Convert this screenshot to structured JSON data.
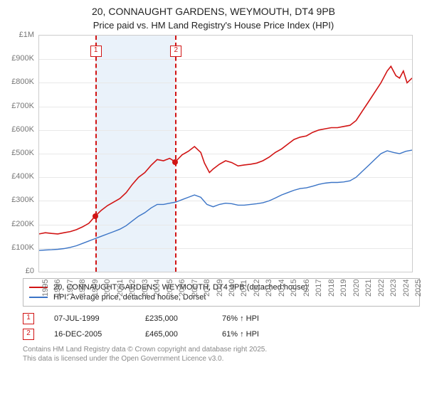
{
  "title1": "20, CONNAUGHT GARDENS, WEYMOUTH, DT4 9PB",
  "title2": "Price paid vs. HM Land Registry's House Price Index (HPI)",
  "chart": {
    "type": "line",
    "background_color": "#ffffff",
    "border_color": "#cccccc",
    "grid_color": "#e8e8e8",
    "y_axis": {
      "min": 0,
      "max": 1000000,
      "ticks": [
        0,
        100000,
        200000,
        300000,
        400000,
        500000,
        600000,
        700000,
        800000,
        900000,
        1000000
      ],
      "labels": [
        "£0",
        "£100K",
        "£200K",
        "£300K",
        "£400K",
        "£500K",
        "£600K",
        "£700K",
        "£800K",
        "£900K",
        "£1M"
      ],
      "label_fontsize": 11,
      "label_color": "#777777"
    },
    "x_axis": {
      "min_year": 1995,
      "max_year": 2025,
      "ticks": [
        1995,
        1996,
        1997,
        1998,
        1999,
        2000,
        2001,
        2002,
        2003,
        2004,
        2005,
        2006,
        2007,
        2008,
        2009,
        2010,
        2011,
        2012,
        2013,
        2014,
        2015,
        2016,
        2017,
        2018,
        2019,
        2020,
        2021,
        2022,
        2023,
        2024,
        2025
      ],
      "label_fontsize": 11,
      "label_color": "#777777",
      "rotation": -90
    },
    "highlight_band": {
      "from_year": 1999.5,
      "to_year": 2005.95,
      "color": "#d9e7f5"
    },
    "series": [
      {
        "id": "property",
        "label": "20, CONNAUGHT GARDENS, WEYMOUTH, DT4 9PB (detached house)",
        "color": "#d11414",
        "line_width": 1.6,
        "points": [
          [
            1995.0,
            160000
          ],
          [
            1995.5,
            165000
          ],
          [
            1996.0,
            162000
          ],
          [
            1996.5,
            160000
          ],
          [
            1997.0,
            165000
          ],
          [
            1997.5,
            170000
          ],
          [
            1998.0,
            178000
          ],
          [
            1998.5,
            190000
          ],
          [
            1999.0,
            205000
          ],
          [
            1999.5,
            235000
          ],
          [
            2000.0,
            260000
          ],
          [
            2000.5,
            280000
          ],
          [
            2001.0,
            295000
          ],
          [
            2001.5,
            310000
          ],
          [
            2002.0,
            335000
          ],
          [
            2002.5,
            370000
          ],
          [
            2003.0,
            400000
          ],
          [
            2003.5,
            420000
          ],
          [
            2004.0,
            450000
          ],
          [
            2004.5,
            475000
          ],
          [
            2005.0,
            470000
          ],
          [
            2005.5,
            480000
          ],
          [
            2005.95,
            465000
          ],
          [
            2006.5,
            495000
          ],
          [
            2007.0,
            510000
          ],
          [
            2007.5,
            530000
          ],
          [
            2008.0,
            505000
          ],
          [
            2008.3,
            460000
          ],
          [
            2008.7,
            420000
          ],
          [
            2009.0,
            435000
          ],
          [
            2009.5,
            455000
          ],
          [
            2010.0,
            470000
          ],
          [
            2010.5,
            462000
          ],
          [
            2011.0,
            448000
          ],
          [
            2011.5,
            452000
          ],
          [
            2012.0,
            455000
          ],
          [
            2012.5,
            460000
          ],
          [
            2013.0,
            470000
          ],
          [
            2013.5,
            485000
          ],
          [
            2014.0,
            505000
          ],
          [
            2014.5,
            520000
          ],
          [
            2015.0,
            540000
          ],
          [
            2015.5,
            560000
          ],
          [
            2016.0,
            570000
          ],
          [
            2016.5,
            575000
          ],
          [
            2017.0,
            590000
          ],
          [
            2017.5,
            600000
          ],
          [
            2018.0,
            605000
          ],
          [
            2018.5,
            610000
          ],
          [
            2019.0,
            610000
          ],
          [
            2019.5,
            615000
          ],
          [
            2020.0,
            620000
          ],
          [
            2020.5,
            640000
          ],
          [
            2021.0,
            680000
          ],
          [
            2021.5,
            720000
          ],
          [
            2022.0,
            760000
          ],
          [
            2022.5,
            800000
          ],
          [
            2023.0,
            850000
          ],
          [
            2023.3,
            870000
          ],
          [
            2023.7,
            830000
          ],
          [
            2024.0,
            820000
          ],
          [
            2024.3,
            850000
          ],
          [
            2024.6,
            800000
          ],
          [
            2025.0,
            820000
          ]
        ]
      },
      {
        "id": "hpi",
        "label": "HPI: Average price, detached house, Dorset",
        "color": "#3b74c6",
        "line_width": 1.4,
        "points": [
          [
            1995.0,
            90000
          ],
          [
            1995.5,
            92000
          ],
          [
            1996.0,
            93000
          ],
          [
            1996.5,
            95000
          ],
          [
            1997.0,
            98000
          ],
          [
            1997.5,
            103000
          ],
          [
            1998.0,
            110000
          ],
          [
            1998.5,
            120000
          ],
          [
            1999.0,
            130000
          ],
          [
            1999.5,
            140000
          ],
          [
            2000.0,
            150000
          ],
          [
            2000.5,
            160000
          ],
          [
            2001.0,
            170000
          ],
          [
            2001.5,
            180000
          ],
          [
            2002.0,
            195000
          ],
          [
            2002.5,
            215000
          ],
          [
            2003.0,
            235000
          ],
          [
            2003.5,
            250000
          ],
          [
            2004.0,
            270000
          ],
          [
            2004.5,
            285000
          ],
          [
            2005.0,
            285000
          ],
          [
            2005.5,
            290000
          ],
          [
            2006.0,
            295000
          ],
          [
            2006.5,
            305000
          ],
          [
            2007.0,
            315000
          ],
          [
            2007.5,
            325000
          ],
          [
            2008.0,
            315000
          ],
          [
            2008.5,
            285000
          ],
          [
            2009.0,
            275000
          ],
          [
            2009.5,
            285000
          ],
          [
            2010.0,
            290000
          ],
          [
            2010.5,
            288000
          ],
          [
            2011.0,
            282000
          ],
          [
            2011.5,
            282000
          ],
          [
            2012.0,
            285000
          ],
          [
            2012.5,
            288000
          ],
          [
            2013.0,
            292000
          ],
          [
            2013.5,
            300000
          ],
          [
            2014.0,
            312000
          ],
          [
            2014.5,
            325000
          ],
          [
            2015.0,
            335000
          ],
          [
            2015.5,
            345000
          ],
          [
            2016.0,
            352000
          ],
          [
            2016.5,
            355000
          ],
          [
            2017.0,
            362000
          ],
          [
            2017.5,
            370000
          ],
          [
            2018.0,
            375000
          ],
          [
            2018.5,
            378000
          ],
          [
            2019.0,
            378000
          ],
          [
            2019.5,
            380000
          ],
          [
            2020.0,
            385000
          ],
          [
            2020.5,
            400000
          ],
          [
            2021.0,
            425000
          ],
          [
            2021.5,
            450000
          ],
          [
            2022.0,
            475000
          ],
          [
            2022.5,
            500000
          ],
          [
            2023.0,
            512000
          ],
          [
            2023.5,
            505000
          ],
          [
            2024.0,
            500000
          ],
          [
            2024.5,
            510000
          ],
          [
            2025.0,
            515000
          ]
        ]
      }
    ],
    "sales": [
      {
        "n": "1",
        "year": 1999.5,
        "price": 235000,
        "date": "07-JUL-1999",
        "price_str": "£235,000",
        "hpi_delta": "76% ↑ HPI",
        "color": "#d11414"
      },
      {
        "n": "2",
        "year": 2005.95,
        "price": 465000,
        "date": "16-DEC-2005",
        "price_str": "£465,000",
        "hpi_delta": "61% ↑ HPI",
        "color": "#d11414"
      }
    ]
  },
  "legend": {
    "border_color": "#bbbbbb",
    "fontsize": 11,
    "items": [
      {
        "label": "20, CONNAUGHT GARDENS, WEYMOUTH, DT4 9PB (detached house)",
        "color": "#d11414"
      },
      {
        "label": "HPI: Average price, detached house, Dorset",
        "color": "#3b74c6"
      }
    ]
  },
  "attribution": {
    "line1": "Contains HM Land Registry data © Crown copyright and database right 2025.",
    "line2": "This data is licensed under the Open Government Licence v3.0.",
    "color": "#888888",
    "fontsize": 10
  }
}
